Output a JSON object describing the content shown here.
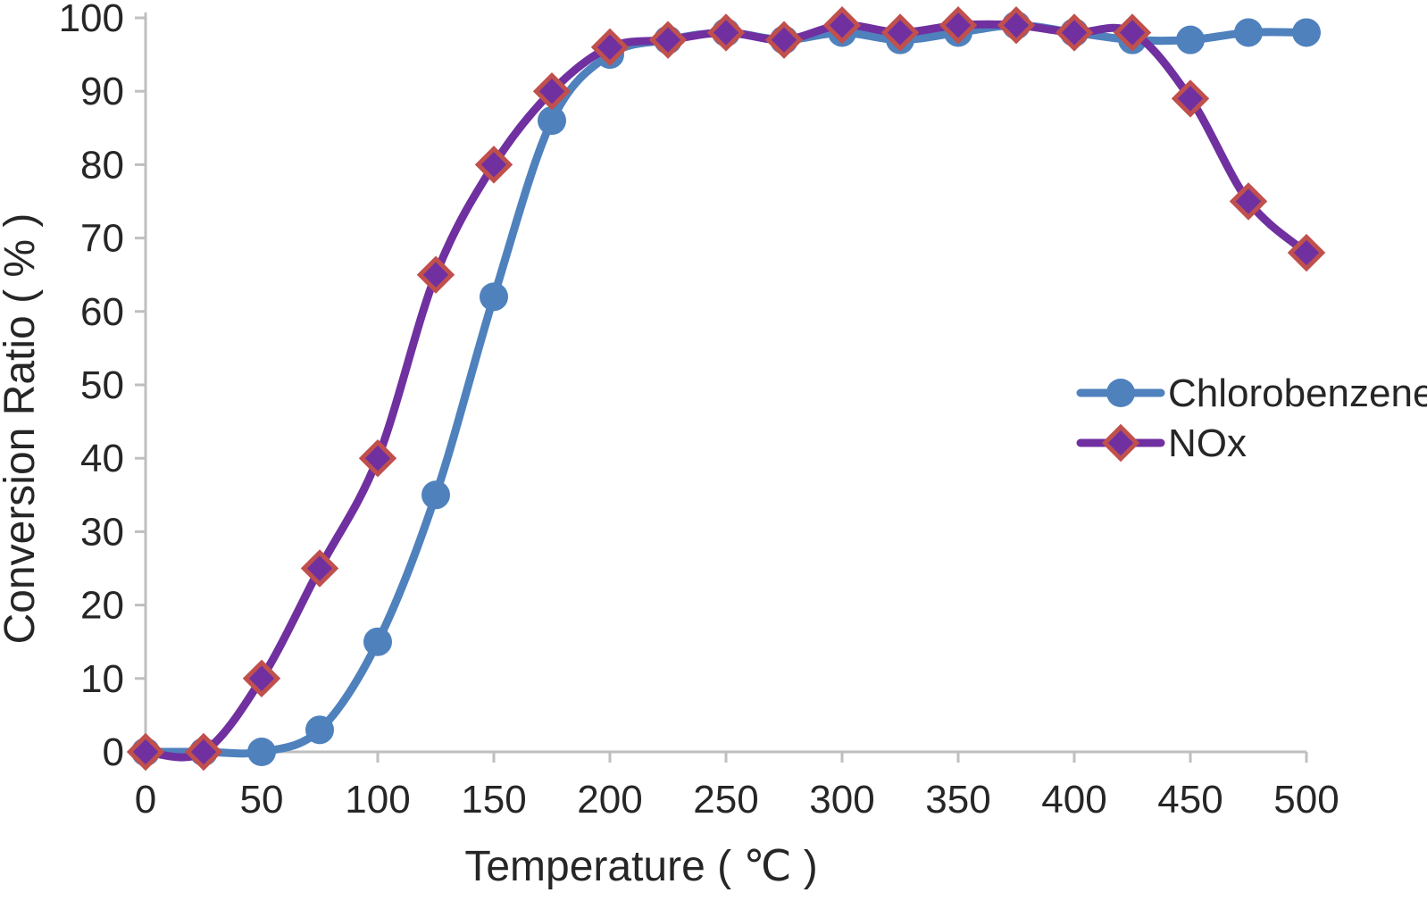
{
  "chart_data": {
    "type": "line",
    "title": "",
    "xlabel": "Temperature ( ℃ )",
    "ylabel": "Conversion Ratio ( % )",
    "x": [
      0,
      25,
      50,
      75,
      100,
      125,
      150,
      175,
      200,
      225,
      250,
      275,
      300,
      325,
      350,
      375,
      400,
      425,
      450,
      475,
      500
    ],
    "series": [
      {
        "name": "Chlorobenzene",
        "color": "#4F81BD",
        "marker": "circle",
        "values": [
          0,
          0,
          0,
          3,
          15,
          35,
          62,
          86,
          95,
          97,
          98,
          97,
          98,
          97,
          98,
          99,
          98,
          97,
          97,
          98,
          98
        ]
      },
      {
        "name": "NOx",
        "color": "#7030A0",
        "marker": "diamond",
        "marker_fill": "#7030A0",
        "marker_border": "#C0504D",
        "values": [
          0,
          0,
          10,
          25,
          40,
          65,
          80,
          90,
          96,
          97,
          98,
          97,
          99,
          98,
          99,
          99,
          98,
          98,
          89,
          75,
          68
        ]
      }
    ],
    "xlim": [
      0,
      500
    ],
    "ylim": [
      0,
      100
    ],
    "x_ticks": [
      0,
      50,
      100,
      150,
      200,
      250,
      300,
      350,
      400,
      450,
      500
    ],
    "y_ticks": [
      0,
      10,
      20,
      30,
      40,
      50,
      60,
      70,
      80,
      90,
      100
    ],
    "grid": false,
    "legend_position": "right-middle",
    "axis_color": "#BFBFBF",
    "text_color": "#262626",
    "smooth_lines": true
  }
}
